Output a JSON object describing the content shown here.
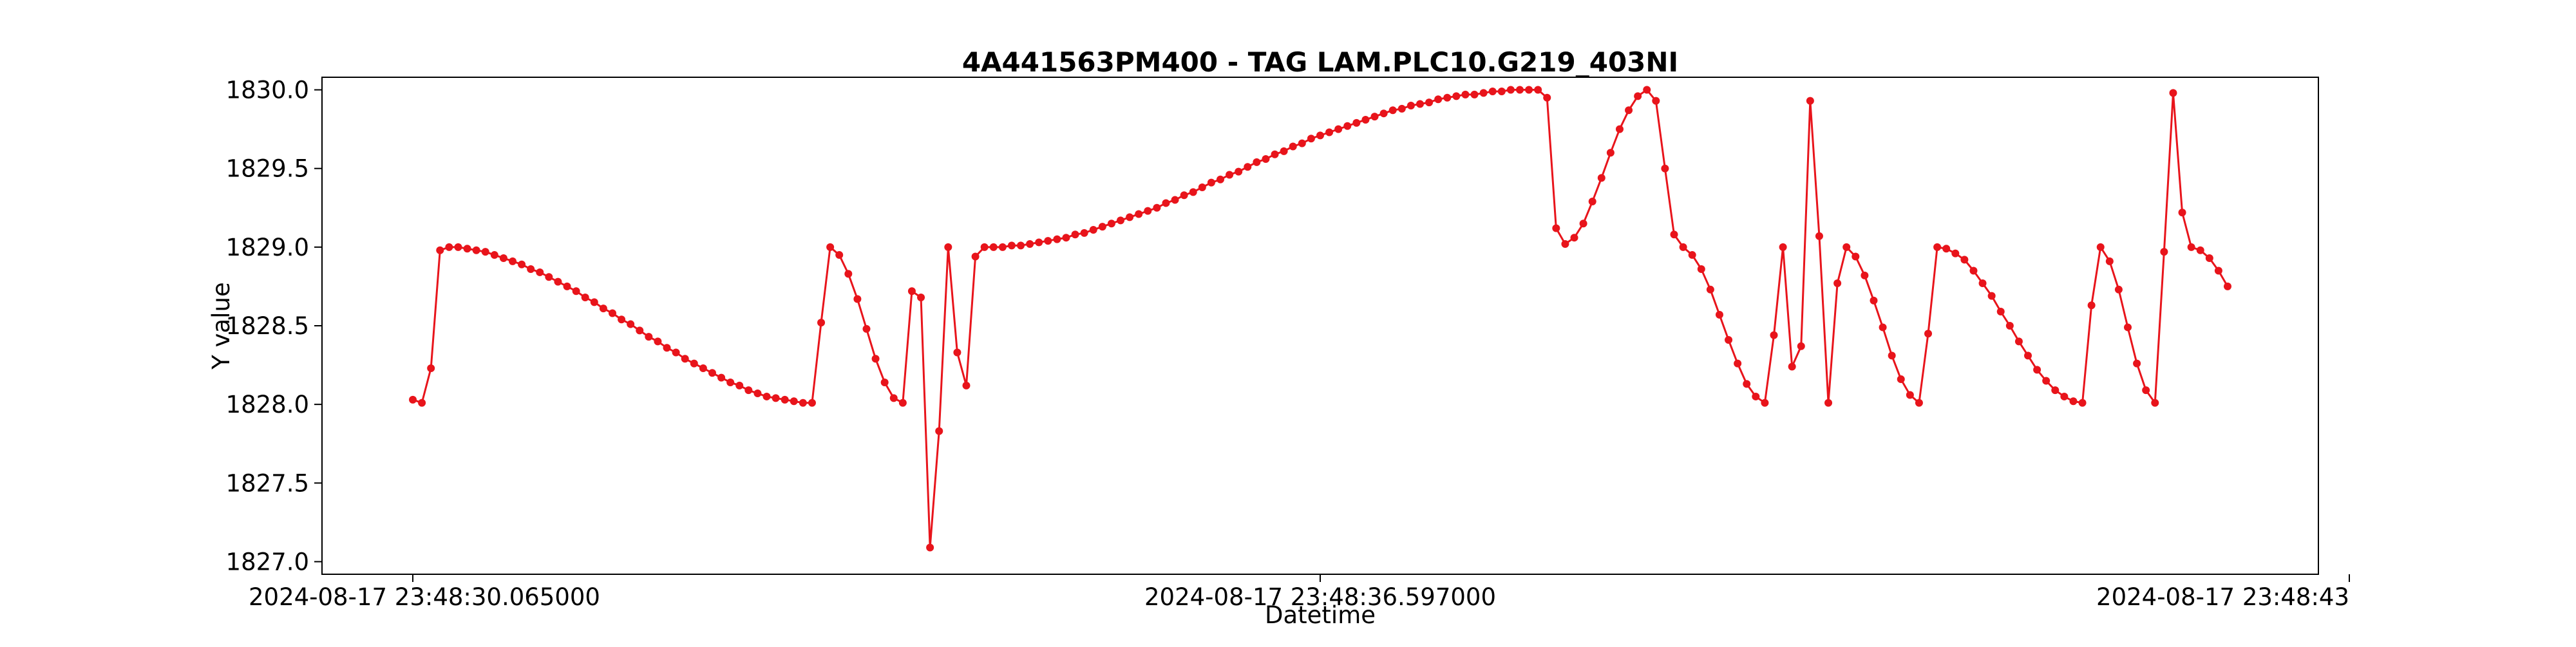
{
  "chart_data": {
    "type": "line",
    "title": "4A441563PM400 - TAG LAM.PLC10.G219_403NI",
    "xlabel": "Datetime",
    "ylabel": "Y value",
    "x_tick_labels": [
      "2024-08-17 23:48:30.065000",
      "2024-08-17 23:48:36.597000",
      "2024-08-17 23:48:43"
    ],
    "y_tick_labels": [
      "1827.0",
      "1827.5",
      "1828.0",
      "1828.5",
      "1829.0",
      "1829.5",
      "1830.0"
    ],
    "y_ticks": [
      1827.0,
      1827.5,
      1828.0,
      1828.5,
      1829.0,
      1829.5,
      1830.0
    ],
    "ylim": [
      1826.92,
      1830.08
    ],
    "grid": false,
    "series": [
      {
        "color": "#e8141b",
        "marker": "circle",
        "values": [
          1828.03,
          1828.01,
          1828.23,
          1828.98,
          1829.0,
          1829.0,
          1828.99,
          1828.98,
          1828.97,
          1828.95,
          1828.93,
          1828.91,
          1828.89,
          1828.86,
          1828.84,
          1828.81,
          1828.78,
          1828.75,
          1828.72,
          1828.68,
          1828.65,
          1828.61,
          1828.58,
          1828.54,
          1828.51,
          1828.47,
          1828.43,
          1828.4,
          1828.36,
          1828.33,
          1828.29,
          1828.26,
          1828.23,
          1828.2,
          1828.17,
          1828.14,
          1828.12,
          1828.09,
          1828.07,
          1828.05,
          1828.04,
          1828.03,
          1828.02,
          1828.01,
          1828.01,
          1828.52,
          1829.0,
          1828.95,
          1828.83,
          1828.67,
          1828.48,
          1828.29,
          1828.14,
          1828.04,
          1828.01,
          1828.72,
          1828.68,
          1827.09,
          1827.83,
          1829.0,
          1828.33,
          1828.12,
          1828.94,
          1829.0,
          1829.0,
          1829.0,
          1829.01,
          1829.01,
          1829.02,
          1829.03,
          1829.04,
          1829.05,
          1829.06,
          1829.08,
          1829.09,
          1829.11,
          1829.13,
          1829.15,
          1829.17,
          1829.19,
          1829.21,
          1829.23,
          1829.25,
          1829.28,
          1829.3,
          1829.33,
          1829.35,
          1829.38,
          1829.41,
          1829.43,
          1829.46,
          1829.48,
          1829.51,
          1829.54,
          1829.56,
          1829.59,
          1829.61,
          1829.64,
          1829.66,
          1829.69,
          1829.71,
          1829.73,
          1829.75,
          1829.77,
          1829.79,
          1829.81,
          1829.83,
          1829.85,
          1829.87,
          1829.88,
          1829.9,
          1829.91,
          1829.92,
          1829.94,
          1829.95,
          1829.96,
          1829.97,
          1829.97,
          1829.98,
          1829.99,
          1829.99,
          1830.0,
          1830.0,
          1830.0,
          1830.0,
          1829.95,
          1829.12,
          1829.02,
          1829.06,
          1829.15,
          1829.29,
          1829.44,
          1829.6,
          1829.75,
          1829.87,
          1829.96,
          1830.0,
          1829.93,
          1829.5,
          1829.08,
          1829.0,
          1828.95,
          1828.86,
          1828.73,
          1828.57,
          1828.41,
          1828.26,
          1828.13,
          1828.05,
          1828.01,
          1828.44,
          1829.0,
          1828.24,
          1828.37,
          1829.93,
          1829.07,
          1828.01,
          1828.77,
          1829.0,
          1828.94,
          1828.82,
          1828.66,
          1828.49,
          1828.31,
          1828.16,
          1828.06,
          1828.01,
          1828.45,
          1829.0,
          1828.99,
          1828.96,
          1828.92,
          1828.85,
          1828.77,
          1828.69,
          1828.59,
          1828.5,
          1828.4,
          1828.31,
          1828.22,
          1828.15,
          1828.09,
          1828.05,
          1828.02,
          1828.01,
          1828.63,
          1829.0,
          1828.91,
          1828.73,
          1828.49,
          1828.26,
          1828.09,
          1828.01,
          1828.97,
          1829.98,
          1829.22,
          1829.0,
          1828.98,
          1828.93,
          1828.85,
          1828.75
        ]
      }
    ]
  }
}
